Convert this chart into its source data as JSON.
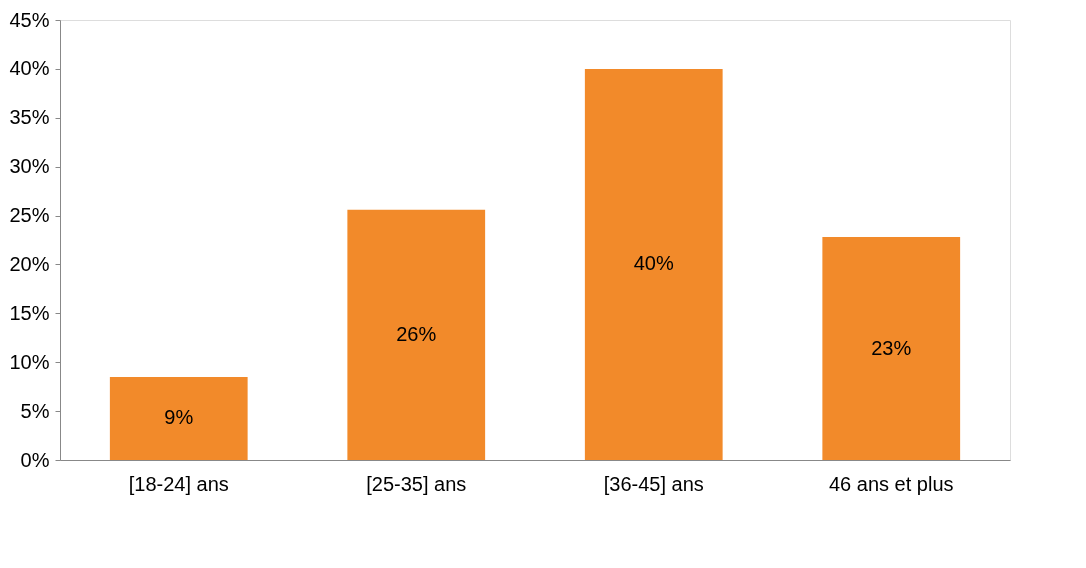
{
  "chart_data": {
    "type": "bar",
    "categories": [
      "[18-24] ans",
      "[25-35] ans",
      "[36-45] ans",
      "46 ans et plus"
    ],
    "values": [
      8.5,
      25.6,
      40,
      22.8
    ],
    "value_labels": [
      "9%",
      "26%",
      "40%",
      "23%"
    ],
    "color": "#f28a2a",
    "ylim": [
      0,
      45
    ],
    "yticks": [
      {
        "value": 0,
        "label": "0%"
      },
      {
        "value": 5,
        "label": "5%"
      },
      {
        "value": 10,
        "label": "10%"
      },
      {
        "value": 15,
        "label": "15%"
      },
      {
        "value": 20,
        "label": "20%"
      },
      {
        "value": 25,
        "label": "25%"
      },
      {
        "value": 30,
        "label": "30%"
      },
      {
        "value": 35,
        "label": "35%"
      },
      {
        "value": 40,
        "label": "40%"
      },
      {
        "value": 45,
        "label": "45%"
      }
    ],
    "grid": false
  }
}
